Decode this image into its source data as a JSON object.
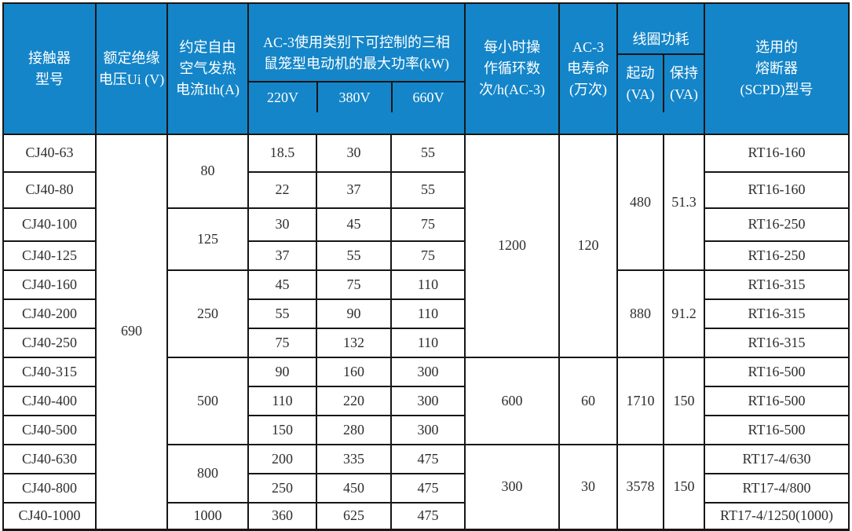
{
  "colors": {
    "header_bg": "#1485c8",
    "header_text": "#ffffff",
    "border": "#161616",
    "body_text": "#2e2e2e"
  },
  "table": {
    "header": {
      "model": "接触器\n型号",
      "insulation_voltage": "额定绝缘\n电压Ui (V)",
      "thermal_current": "约定自由\n空气发热\n电流Ith(A)",
      "power_group": "AC-3使用类别下可控制的三相\n鼠笼型电动机的最大功率(kW)",
      "power_sub": [
        "220V",
        "380V",
        "660V"
      ],
      "cycles": "每小时操\n作循环数\n次/h(AC-3)",
      "life": "AC-3\n电寿命\n(万次)",
      "coil_group": "线圈功耗",
      "coil_start": "起动\n(VA)",
      "coil_hold": "保持\n(VA)",
      "fuse": "选用的\n熔断器\n(SCPD)型号"
    },
    "rows": [
      [
        {
          "col": "model",
          "v": "CJ40-63"
        },
        {
          "col": "ui",
          "v": "690",
          "rs": 13
        },
        {
          "col": "ith",
          "v": "80",
          "rs": 2
        },
        {
          "col": "kw220",
          "v": "18.5"
        },
        {
          "col": "kw380",
          "v": "30"
        },
        {
          "col": "kw660",
          "v": "55"
        },
        {
          "col": "cycles",
          "v": "1200",
          "rs": 7
        },
        {
          "col": "life",
          "v": "120",
          "rs": 7
        },
        {
          "col": "start",
          "v": "480",
          "rs": 4
        },
        {
          "col": "hold",
          "v": "51.3",
          "rs": 4
        },
        {
          "col": "fuse",
          "v": "RT16-160"
        }
      ],
      [
        {
          "col": "model",
          "v": "CJ40-80"
        },
        {
          "col": "kw220",
          "v": "22"
        },
        {
          "col": "kw380",
          "v": "37"
        },
        {
          "col": "kw660",
          "v": "55"
        },
        {
          "col": "fuse",
          "v": "RT16-160"
        }
      ],
      [
        {
          "col": "model",
          "v": "CJ40-100"
        },
        {
          "col": "ith",
          "v": "125",
          "rs": 2
        },
        {
          "col": "kw220",
          "v": "30"
        },
        {
          "col": "kw380",
          "v": "45"
        },
        {
          "col": "kw660",
          "v": "75"
        },
        {
          "col": "fuse",
          "v": "RT16-250"
        }
      ],
      [
        {
          "col": "model",
          "v": "CJ40-125"
        },
        {
          "col": "kw220",
          "v": "37"
        },
        {
          "col": "kw380",
          "v": "55"
        },
        {
          "col": "kw660",
          "v": "75"
        },
        {
          "col": "fuse",
          "v": "RT16-250"
        }
      ],
      [
        {
          "col": "model",
          "v": "CJ40-160"
        },
        {
          "col": "ith",
          "v": "250",
          "rs": 3
        },
        {
          "col": "kw220",
          "v": "45"
        },
        {
          "col": "kw380",
          "v": "75"
        },
        {
          "col": "kw660",
          "v": "110"
        },
        {
          "col": "start",
          "v": "880",
          "rs": 3
        },
        {
          "col": "hold",
          "v": "91.2",
          "rs": 3
        },
        {
          "col": "fuse",
          "v": "RT16-315"
        }
      ],
      [
        {
          "col": "model",
          "v": "CJ40-200"
        },
        {
          "col": "kw220",
          "v": "55"
        },
        {
          "col": "kw380",
          "v": "90"
        },
        {
          "col": "kw660",
          "v": "110"
        },
        {
          "col": "fuse",
          "v": "RT16-315"
        }
      ],
      [
        {
          "col": "model",
          "v": "CJ40-250"
        },
        {
          "col": "kw220",
          "v": "75"
        },
        {
          "col": "kw380",
          "v": "132"
        },
        {
          "col": "kw660",
          "v": "110"
        },
        {
          "col": "fuse",
          "v": "RT16-315"
        }
      ],
      [
        {
          "col": "model",
          "v": "CJ40-315"
        },
        {
          "col": "ith",
          "v": "500",
          "rs": 3
        },
        {
          "col": "kw220",
          "v": "90"
        },
        {
          "col": "kw380",
          "v": "160"
        },
        {
          "col": "kw660",
          "v": "300"
        },
        {
          "col": "cycles",
          "v": "600",
          "rs": 3
        },
        {
          "col": "life",
          "v": "60",
          "rs": 3
        },
        {
          "col": "start",
          "v": "1710",
          "rs": 3
        },
        {
          "col": "hold",
          "v": "150",
          "rs": 3
        },
        {
          "col": "fuse",
          "v": "RT16-500"
        }
      ],
      [
        {
          "col": "model",
          "v": "CJ40-400"
        },
        {
          "col": "kw220",
          "v": "110"
        },
        {
          "col": "kw380",
          "v": "220"
        },
        {
          "col": "kw660",
          "v": "300"
        },
        {
          "col": "fuse",
          "v": "RT16-500"
        }
      ],
      [
        {
          "col": "model",
          "v": "CJ40-500"
        },
        {
          "col": "kw220",
          "v": "150"
        },
        {
          "col": "kw380",
          "v": "280"
        },
        {
          "col": "kw660",
          "v": "300"
        },
        {
          "col": "fuse",
          "v": "RT16-500"
        }
      ],
      [
        {
          "col": "model",
          "v": "CJ40-630"
        },
        {
          "col": "ith",
          "v": "800",
          "rs": 2
        },
        {
          "col": "kw220",
          "v": "200"
        },
        {
          "col": "kw380",
          "v": "335"
        },
        {
          "col": "kw660",
          "v": "475"
        },
        {
          "col": "cycles",
          "v": "300",
          "rs": 3
        },
        {
          "col": "life",
          "v": "30",
          "rs": 3
        },
        {
          "col": "start",
          "v": "3578",
          "rs": 3
        },
        {
          "col": "hold",
          "v": "150",
          "rs": 3
        },
        {
          "col": "fuse",
          "v": "RT17-4/630"
        }
      ],
      [
        {
          "col": "model",
          "v": "CJ40-800"
        },
        {
          "col": "kw220",
          "v": "250"
        },
        {
          "col": "kw380",
          "v": "450"
        },
        {
          "col": "kw660",
          "v": "475"
        },
        {
          "col": "fuse",
          "v": "RT17-4/800"
        }
      ],
      [
        {
          "col": "model",
          "v": "CJ40-1000"
        },
        {
          "col": "ith",
          "v": "1000"
        },
        {
          "col": "kw220",
          "v": "360"
        },
        {
          "col": "kw380",
          "v": "625"
        },
        {
          "col": "kw660",
          "v": "475"
        },
        {
          "col": "fuse",
          "v": "RT17-4/1250(1000)"
        }
      ]
    ]
  }
}
